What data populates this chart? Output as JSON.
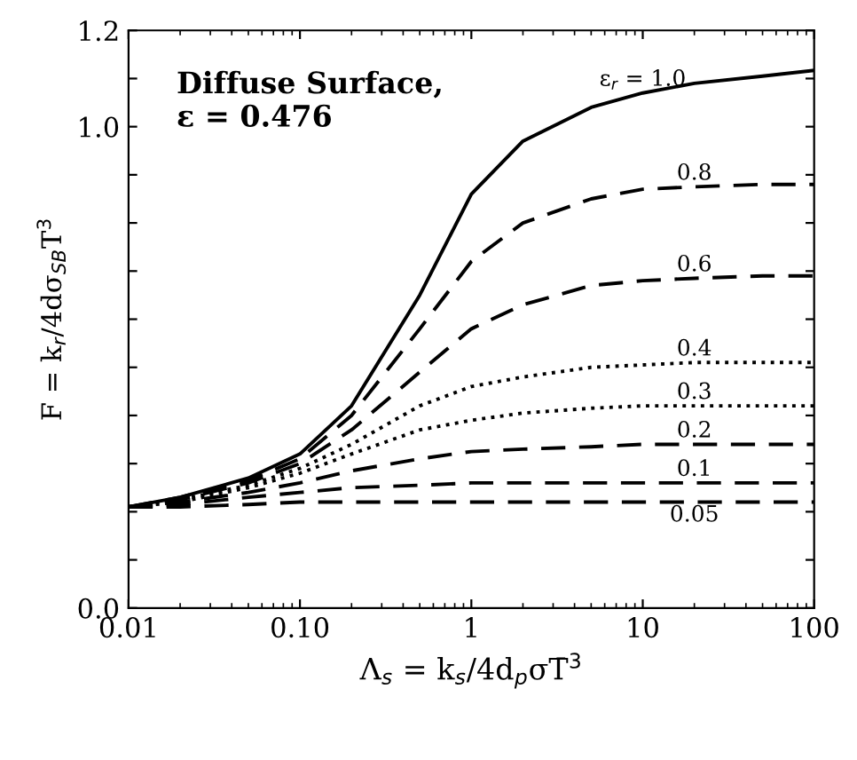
{
  "chart_data": {
    "type": "line",
    "xlabel": "Λ$_{s}$ = k$_{s}$/4d$_{p}$σT̄$^{3}$",
    "ylabel": "F = k$_{r}$/4dσ$_{SB}$T$^{3}$",
    "annotations": [
      "Diffuse Surface,\nε = 0.476"
    ],
    "log": "x",
    "xlim": [
      0.01,
      100
    ],
    "xticks": [
      0.01,
      {
        "value": 0.1,
        "label": "0.10"
      },
      1,
      10,
      100
    ],
    "ylim": [
      0,
      1.2
    ],
    "yticks": [
      {
        "value": 0,
        "label": "0.0"
      },
      {
        "value": 0.1,
        "label": null
      },
      {
        "value": 0.2,
        "label": null
      },
      {
        "value": 0.3,
        "label": null
      },
      {
        "value": 0.4,
        "label": null
      },
      {
        "value": 0.5,
        "label": null
      },
      {
        "value": 0.6,
        "label": null
      },
      {
        "value": 0.7,
        "label": null
      },
      {
        "value": 0.8,
        "label": null
      },
      {
        "value": 0.9,
        "label": null
      },
      {
        "value": 1,
        "label": "1.0"
      },
      {
        "value": 1.1,
        "label": null
      },
      1.2
    ],
    "grid": false,
    "legend": false,
    "marker": "none",
    "x": [
      0.01,
      0.02,
      0.05,
      0.1,
      0.2,
      0.5,
      1,
      2,
      5,
      10,
      20,
      50,
      100
    ],
    "series": [
      {
        "name": "ε$_{r}$ = 1.0",
        "color": "#000000",
        "line_style": "solid",
        "values": [
          0.21,
          0.23,
          0.27,
          0.32,
          0.42,
          0.65,
          0.86,
          0.97,
          1.04,
          1.07,
          1.09,
          1.105,
          1.117
        ]
      },
      {
        "name": "0.8",
        "color": "#000000",
        "line_style": "dashed",
        "values": [
          0.21,
          0.23,
          0.265,
          0.31,
          0.4,
          0.58,
          0.72,
          0.8,
          0.85,
          0.87,
          0.875,
          0.88,
          0.88
        ]
      },
      {
        "name": "0.6",
        "color": "#000000",
        "line_style": "dashed",
        "values": [
          0.21,
          0.225,
          0.26,
          0.3,
          0.37,
          0.49,
          0.58,
          0.63,
          0.67,
          0.68,
          0.685,
          0.69,
          0.69
        ]
      },
      {
        "name": "0.4",
        "color": "#000000",
        "line_style": "dotted",
        "values": [
          0.21,
          0.225,
          0.255,
          0.29,
          0.34,
          0.42,
          0.46,
          0.48,
          0.5,
          0.505,
          0.51,
          0.51,
          0.51
        ]
      },
      {
        "name": "0.3",
        "color": "#000000",
        "line_style": "dotted",
        "values": [
          0.21,
          0.22,
          0.25,
          0.28,
          0.32,
          0.37,
          0.39,
          0.405,
          0.415,
          0.42,
          0.42,
          0.42,
          0.42
        ]
      },
      {
        "name": "0.2",
        "color": "#000000",
        "line_style": "dashed",
        "values": [
          0.21,
          0.22,
          0.24,
          0.26,
          0.285,
          0.31,
          0.325,
          0.33,
          0.335,
          0.34,
          0.34,
          0.34,
          0.34
        ]
      },
      {
        "name": "0.1",
        "color": "#000000",
        "line_style": "dashed",
        "values": [
          0.21,
          0.215,
          0.23,
          0.24,
          0.25,
          0.255,
          0.26,
          0.26,
          0.26,
          0.26,
          0.26,
          0.26,
          0.26
        ]
      },
      {
        "name": "0.05",
        "color": "#000000",
        "line_style": "dashed",
        "values": [
          0.21,
          0.21,
          0.215,
          0.22,
          0.22,
          0.22,
          0.22,
          0.22,
          0.22,
          0.22,
          0.22,
          0.22,
          0.22
        ]
      }
    ]
  }
}
